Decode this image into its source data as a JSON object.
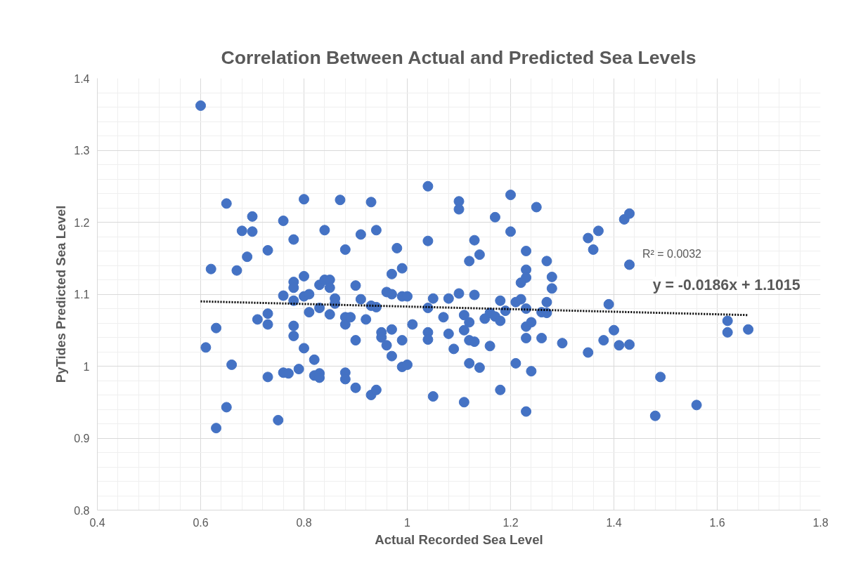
{
  "chart_data": {
    "type": "scatter",
    "title": "Correlation Between Actual and Predicted Sea Levels",
    "xlabel": "Actual Recorded Sea Level",
    "ylabel": "PyTides Predicted Sea Level",
    "xlim": [
      0.4,
      1.8
    ],
    "xticks": [
      0.4,
      0.6,
      0.8,
      1,
      1.2,
      1.4,
      1.6,
      1.8
    ],
    "ylim": [
      0.8,
      1.4
    ],
    "yticks": [
      0.8,
      0.9,
      1,
      1.1,
      1.2,
      1.3,
      1.4
    ],
    "grid": true,
    "annotations": [
      "R² = 0.0032",
      "y = -0.0186x + 1.1015"
    ],
    "series": [
      {
        "marker": "circle",
        "color": "#4472c4",
        "x": [
          0.6,
          0.62,
          0.61,
          0.63,
          0.63,
          0.65,
          0.65,
          0.66,
          0.67,
          0.68,
          0.69,
          0.7,
          0.7,
          0.71,
          0.73,
          0.73,
          0.73,
          0.73,
          0.75,
          0.76,
          0.76,
          0.76,
          0.77,
          0.78,
          0.78,
          0.78,
          0.78,
          0.78,
          0.78,
          0.79,
          0.8,
          0.8,
          0.8,
          0.8,
          0.81,
          0.81,
          0.82,
          0.82,
          0.83,
          0.83,
          0.83,
          0.83,
          0.84,
          0.84,
          0.85,
          0.85,
          0.85,
          0.86,
          0.86,
          0.87,
          0.88,
          0.88,
          0.88,
          0.88,
          0.88,
          0.89,
          0.9,
          0.9,
          0.9,
          0.91,
          0.91,
          0.92,
          0.93,
          0.93,
          0.93,
          0.94,
          0.94,
          0.94,
          0.95,
          0.95,
          0.96,
          0.96,
          0.97,
          0.97,
          0.97,
          0.97,
          0.98,
          0.99,
          0.99,
          0.99,
          0.99,
          1.0,
          1.0,
          1.01,
          1.04,
          1.1,
          1.1,
          1.2,
          1.25,
          1.17,
          1.2,
          1.04,
          1.13,
          1.14,
          1.12,
          1.23,
          1.27,
          1.23,
          1.23,
          1.22,
          1.28,
          1.28,
          1.35,
          1.37,
          1.36,
          1.39,
          1.04,
          1.05,
          1.07,
          1.08,
          1.1,
          1.11,
          1.12,
          1.13,
          1.15,
          1.16,
          1.17,
          1.18,
          1.18,
          1.19,
          1.21,
          1.22,
          1.23,
          1.26,
          1.27,
          1.27,
          1.23,
          1.24,
          1.23,
          1.26,
          1.3,
          1.04,
          1.04,
          1.08,
          1.11,
          1.09,
          1.12,
          1.13,
          1.16,
          1.12,
          1.14,
          1.21,
          1.24,
          1.18,
          1.05,
          1.11,
          1.23,
          1.35,
          1.38,
          1.4,
          1.41,
          1.42,
          1.43,
          1.43,
          1.62,
          1.62,
          1.66,
          1.43,
          1.49,
          1.48,
          1.56
        ],
        "values": [
          1.362,
          1.135,
          1.026,
          1.053,
          0.914,
          1.226,
          0.943,
          1.002,
          1.133,
          1.188,
          1.152,
          1.208,
          1.187,
          1.065,
          1.161,
          1.073,
          1.058,
          0.985,
          0.925,
          1.202,
          1.098,
          0.991,
          0.99,
          1.176,
          1.117,
          1.109,
          1.091,
          1.056,
          1.042,
          0.996,
          1.232,
          1.125,
          1.097,
          1.025,
          1.075,
          1.1,
          1.009,
          0.987,
          1.113,
          1.081,
          0.99,
          0.984,
          1.189,
          1.12,
          1.12,
          1.109,
          1.072,
          1.094,
          1.087,
          1.231,
          1.162,
          1.068,
          1.058,
          0.991,
          0.982,
          1.068,
          1.112,
          1.036,
          0.97,
          1.183,
          1.093,
          1.065,
          1.228,
          1.084,
          0.96,
          1.189,
          1.082,
          0.967,
          1.047,
          1.04,
          1.029,
          1.103,
          1.128,
          1.1,
          1.051,
          1.014,
          1.164,
          1.136,
          1.097,
          1.036,
          0.999,
          1.097,
          1.002,
          1.058,
          1.25,
          1.229,
          1.218,
          1.238,
          1.221,
          1.207,
          1.187,
          1.174,
          1.175,
          1.155,
          1.146,
          1.16,
          1.146,
          1.134,
          1.123,
          1.116,
          1.124,
          1.108,
          1.178,
          1.188,
          1.162,
          1.086,
          1.081,
          1.094,
          1.068,
          1.094,
          1.101,
          1.071,
          1.061,
          1.099,
          1.066,
          1.074,
          1.069,
          1.091,
          1.063,
          1.077,
          1.089,
          1.093,
          1.08,
          1.075,
          1.089,
          1.074,
          1.055,
          1.061,
          1.039,
          1.039,
          1.032,
          1.047,
          1.037,
          1.045,
          1.05,
          1.024,
          1.036,
          1.034,
          1.028,
          1.004,
          0.998,
          1.004,
          0.993,
          0.967,
          0.958,
          0.95,
          0.937,
          1.019,
          1.036,
          1.05,
          1.029,
          1.204,
          1.212,
          1.141,
          1.063,
          1.047,
          1.051,
          1.03,
          0.985,
          0.931,
          0.946
        ]
      },
      {
        "type": "line",
        "color": "#000000",
        "line_style": "dotted",
        "x": [
          0.6,
          1.66
        ],
        "values": [
          1.09,
          1.071
        ]
      }
    ]
  }
}
